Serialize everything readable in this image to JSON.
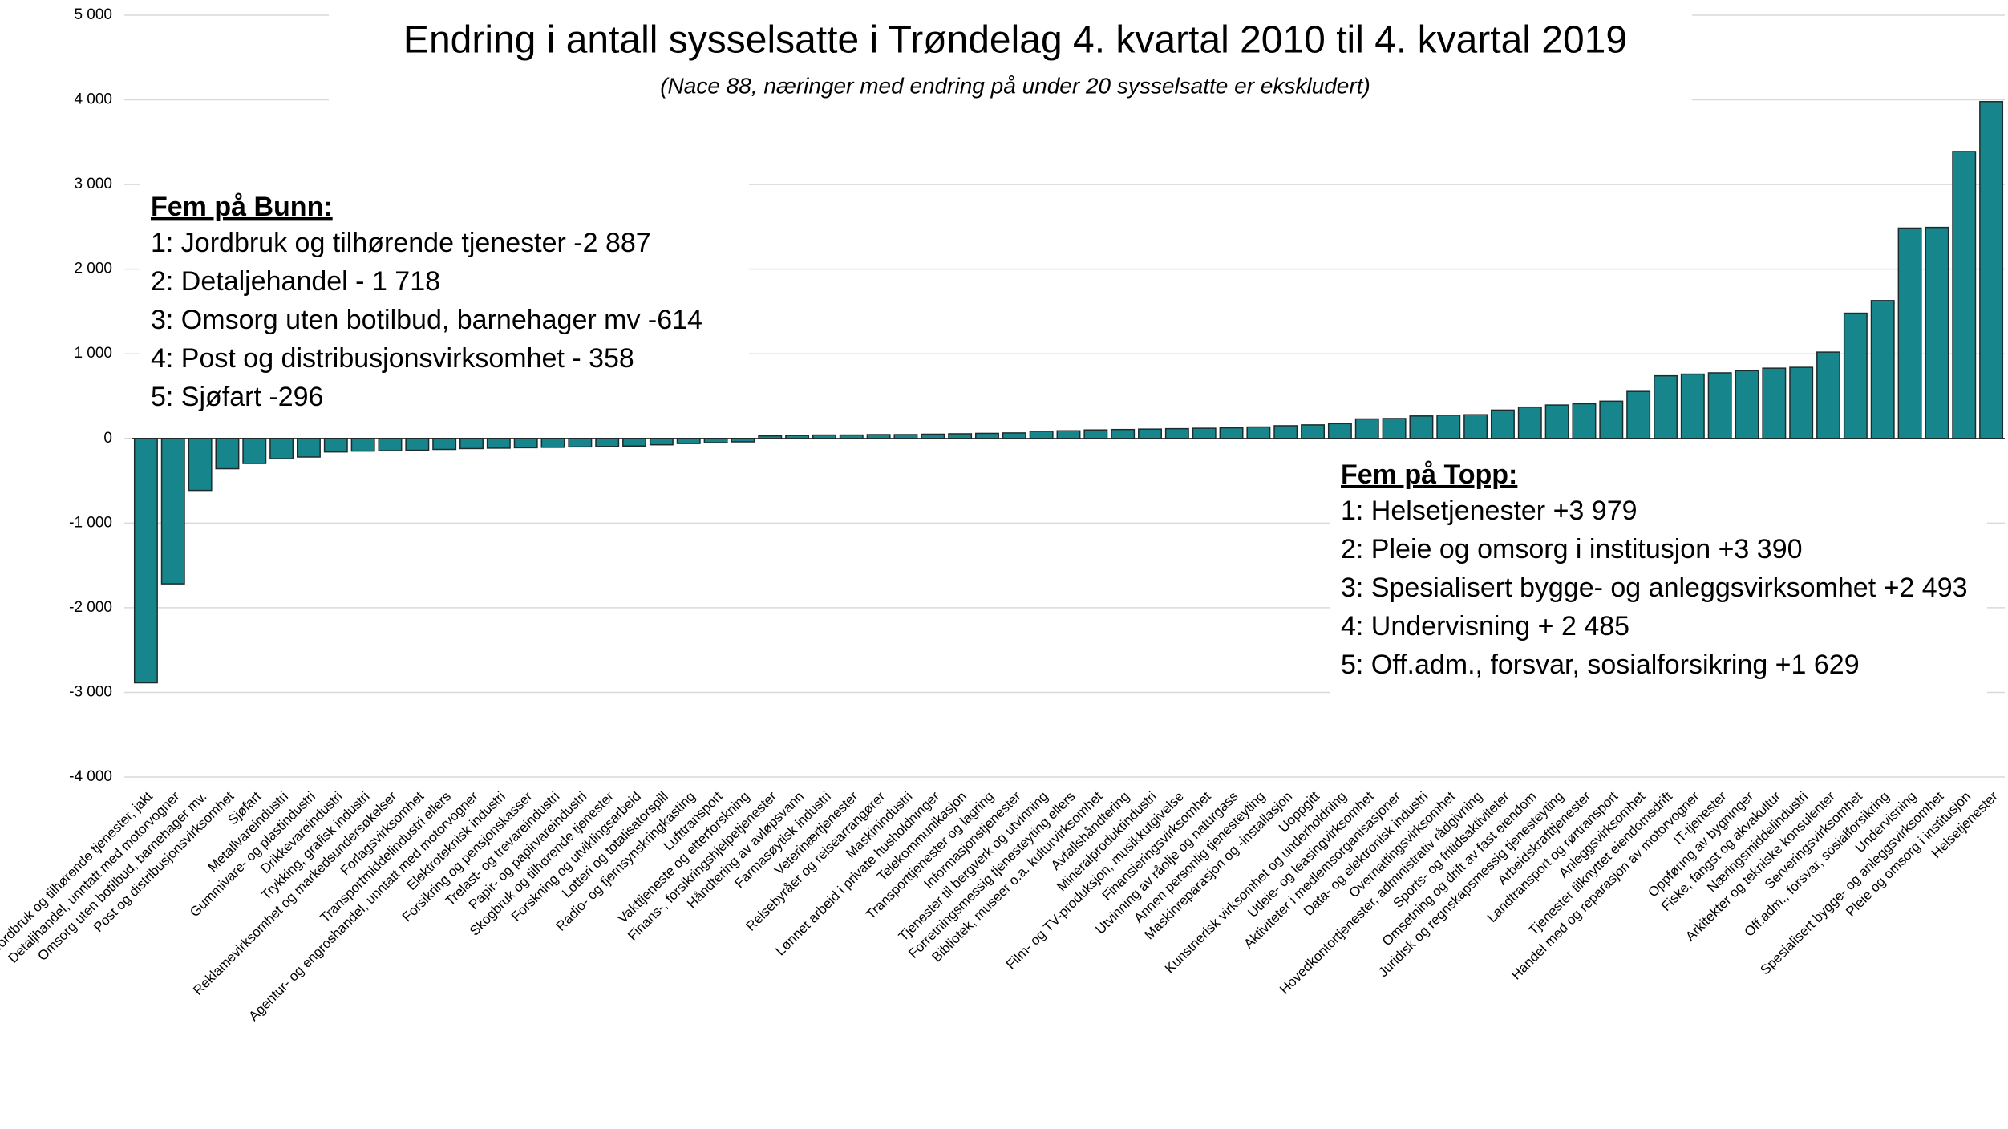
{
  "chart_data": {
    "type": "bar",
    "title": "Endring i antall sysselsatte i Trøndelag 4. kvartal 2010 til 4. kvartal 2019",
    "subtitle": "(Nace 88, næringer med endring på  under 20 sysselsatte er ekskludert)",
    "categories": [
      "Jordbruk og tilhørende tjenester, jakt",
      "Detaljhandel, unntatt med motorvogner",
      "Omsorg uten botilbud, barnehager mv.",
      "Post og distribusjonsvirksomhet",
      "Sjøfart",
      "Metallvareindustri",
      "Gummivare- og plastindustri",
      "Drikkevareindustri",
      "Trykking, grafisk industri",
      "Reklamevirksomhet og markedsundersøkelser",
      "Forlagsvirksomhet",
      "Transportmiddelindustri ellers",
      "Agentur- og engroshandel, unntatt med motorvogner",
      "Elektroteknisk industri",
      "Forsikring og pensjonskasser",
      "Trelast- og trevareindustri",
      "Papir- og papirvareindustri",
      "Skogbruk og tilhørende tjenester",
      "Forskning og utviklingsarbeid",
      "Lotteri og totalisatorspill",
      "Radio- og fjernsynskringkasting",
      "Lufttransport",
      "Vakttjeneste og etterforskning",
      "Finans-, forsikringshjelpetjenester",
      "Håndtering av avløpsvann",
      "Farmasøytisk industri",
      "Veterinærtjenester",
      "Reisebyråer og reisearrangører",
      "Maskinindustri",
      "Lønnet arbeid i private husholdninger",
      "Telekommunikasjon",
      "Transporttjenester og lagring",
      "Informasjonstjenester",
      "Tjenester til bergverk og utvinning",
      "Forretningsmessig tjenesteyting ellers",
      "Bibliotek, museer o.a. kulturvirksomhet",
      "Avfallshåndtering",
      "Mineralproduktindustri",
      "Film- og TV-produksjon, musikkutgivelse",
      "Finansieringsvirksomhet",
      "Utvinning av råolje og naturgass",
      "Annen personlig tjenesteyting",
      "Maskinreparasjon og -installasjon",
      "Uoppgitt",
      "Kunstnerisk virksomhet og underholdning",
      "Utleie- og leasingvirksomhet",
      "Aktiviteter i medlemsorganisasjoner",
      "Data- og elektronisk industri",
      "Overnattingsvirksomhet",
      "Hovedkontortjenester, administrativ rådgivning",
      "Sports- og fritidsaktiviteter",
      "Omsetning og drift av fast eiendom",
      "Juridisk og regnskapsmessig tjenesteyting",
      "Arbeidskrafttjenester",
      "Landtransport og rørtransport",
      "Anleggsvirksomhet",
      "Tjenester tilknyttet eiendomsdrift",
      "Handel med og reparasjon av motorvogner",
      "IT-tjenester",
      "Oppføring av bygninger",
      "Fiske, fangst og akvakultur",
      "Næringsmiddelindustri",
      "Arkitekter og tekniske konsulenter",
      "Serveringsvirksomhet",
      "Off.adm., forsvar, sosialforsikring",
      "Undervisning",
      "Spesialisert bygge- og anleggsvirksomhet",
      "Pleie og omsorg i institusjon",
      "Helsetjenester"
    ],
    "values": [
      -2887,
      -1718,
      -614,
      -358,
      -296,
      -240,
      -220,
      -160,
      -150,
      -145,
      -140,
      -130,
      -120,
      -115,
      -110,
      -105,
      -100,
      -95,
      -90,
      -75,
      -60,
      -50,
      -40,
      30,
      35,
      40,
      40,
      45,
      45,
      50,
      55,
      60,
      65,
      85,
      90,
      100,
      105,
      110,
      115,
      120,
      125,
      135,
      150,
      160,
      175,
      230,
      235,
      265,
      275,
      280,
      335,
      370,
      395,
      410,
      440,
      555,
      740,
      760,
      775,
      800,
      830,
      840,
      1020,
      1480,
      1629,
      2485,
      2493,
      3390,
      3979
    ],
    "color": "#17868c",
    "ylim": [
      -4000,
      5000
    ],
    "yticks": [
      {
        "value": -4000,
        "label": "-4 000"
      },
      {
        "value": -3000,
        "label": "-3 000"
      },
      {
        "value": -2000,
        "label": "-2 000"
      },
      {
        "value": -1000,
        "label": "-1 000"
      },
      0,
      {
        "value": 1000,
        "label": "1 000"
      },
      {
        "value": 2000,
        "label": "2 000"
      },
      {
        "value": 3000,
        "label": "3 000"
      },
      {
        "value": 4000,
        "label": "4 000"
      },
      {
        "value": 5000,
        "label": "5 000"
      }
    ],
    "grid": true,
    "annotations": [
      {
        "heading": "Fem på Bunn:",
        "lines": [
          "1: Jordbruk og tilhørende tjenester -2 887",
          "2: Detaljehandel  - 1 718",
          "3: Omsorg uten botilbud, barnehager mv -614",
          "4: Post og distribusjonsvirksomhet  - 358",
          "5: Sjøfart -296"
        ]
      },
      {
        "heading": "Fem på Topp:",
        "lines": [
          "1: Helsetjenester  +3 979",
          "2: Pleie og omsorg i institusjon +3 390",
          "3: Spesialisert bygge- og anleggsvirksomhet +2 493",
          "4: Undervisning + 2 485",
          "5: Off.adm., forsvar, sosialforsikring +1 629"
        ]
      }
    ]
  }
}
